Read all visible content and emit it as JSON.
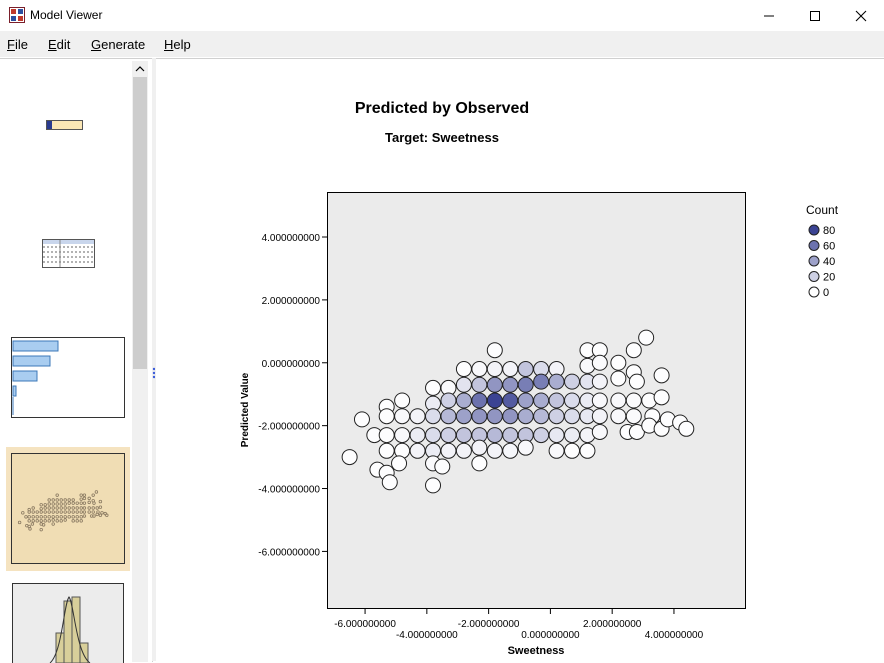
{
  "window": {
    "title": "Model Viewer",
    "minimize_glyph": "—",
    "maximize_glyph": "☐",
    "close_glyph": "✕"
  },
  "menu": [
    {
      "label": "File",
      "mnemonic": "F",
      "rest": "ile"
    },
    {
      "label": "Edit",
      "mnemonic": "E",
      "rest": "dit"
    },
    {
      "label": "Generate",
      "mnemonic": "G",
      "rest": "enerate"
    },
    {
      "label": "Help",
      "mnemonic": "H",
      "rest": "elp"
    }
  ],
  "thumbnails": [
    {
      "name": "model-summary-thumbnail",
      "selected": false
    },
    {
      "name": "table-thumbnail",
      "selected": false
    },
    {
      "name": "predictor-importance-thumbnail",
      "selected": false
    },
    {
      "name": "predicted-by-observed-thumbnail",
      "selected": true
    },
    {
      "name": "residuals-histogram-thumbnail",
      "selected": false
    }
  ],
  "colors": {
    "selected_bg": "#f5e3c0",
    "plot_bg": "#ebebeb",
    "dark_point": "#3b4393",
    "light_point": "#ffffff"
  },
  "chart_data": {
    "type": "scatter",
    "title": "Predicted by Observed",
    "subtitle": "Target: Sweetness",
    "xlabel": "Sweetness",
    "ylabel": "Predicted Value",
    "xlim": [
      -7.2,
      6.3
    ],
    "ylim": [
      -7.8,
      5.4
    ],
    "xticks": [
      -6,
      -4,
      -2,
      0,
      2,
      4
    ],
    "xtick_labels": [
      "-6.000000000",
      "-4.000000000",
      "-2.000000000",
      "0.000000000",
      "2.000000000",
      "4.000000000"
    ],
    "yticks": [
      4,
      2,
      0,
      -2,
      -4,
      -6
    ],
    "ytick_labels": [
      "4.000000000",
      "2.000000000",
      "0.000000000",
      "-2.000000000",
      "-4.000000000",
      "-6.000000000"
    ],
    "legend": {
      "title": "Count",
      "position": "top-right",
      "entries": [
        {
          "label": "80",
          "count": 80
        },
        {
          "label": "60",
          "count": 60
        },
        {
          "label": "40",
          "count": 40
        },
        {
          "label": "20",
          "count": 20
        },
        {
          "label": "0",
          "count": 0
        }
      ]
    },
    "points": [
      {
        "x": -6.5,
        "y": -3.0,
        "count": 1
      },
      {
        "x": -6.1,
        "y": -1.8,
        "count": 1
      },
      {
        "x": -5.7,
        "y": -2.3,
        "count": 1
      },
      {
        "x": -5.6,
        "y": -3.4,
        "count": 1
      },
      {
        "x": -5.3,
        "y": -1.4,
        "count": 1
      },
      {
        "x": -5.3,
        "y": -1.7,
        "count": 1
      },
      {
        "x": -5.3,
        "y": -2.3,
        "count": 1
      },
      {
        "x": -5.3,
        "y": -2.8,
        "count": 1
      },
      {
        "x": -5.3,
        "y": -3.5,
        "count": 1
      },
      {
        "x": -5.2,
        "y": -3.8,
        "count": 1
      },
      {
        "x": -4.8,
        "y": -1.2,
        "count": 1
      },
      {
        "x": -4.8,
        "y": -1.7,
        "count": 3
      },
      {
        "x": -4.8,
        "y": -2.3,
        "count": 3
      },
      {
        "x": -4.8,
        "y": -2.8,
        "count": 1
      },
      {
        "x": -4.9,
        "y": -3.2,
        "count": 1
      },
      {
        "x": -4.3,
        "y": -1.7,
        "count": 5
      },
      {
        "x": -4.3,
        "y": -2.3,
        "count": 8
      },
      {
        "x": -4.3,
        "y": -2.8,
        "count": 5
      },
      {
        "x": -3.8,
        "y": -0.8,
        "count": 1
      },
      {
        "x": -3.8,
        "y": -1.3,
        "count": 8
      },
      {
        "x": -3.8,
        "y": -1.7,
        "count": 15
      },
      {
        "x": -3.8,
        "y": -2.3,
        "count": 15
      },
      {
        "x": -3.8,
        "y": -2.8,
        "count": 8
      },
      {
        "x": -3.8,
        "y": -3.2,
        "count": 2
      },
      {
        "x": -3.8,
        "y": -3.9,
        "count": 1
      },
      {
        "x": -3.5,
        "y": -3.3,
        "count": 1
      },
      {
        "x": -3.3,
        "y": -0.8,
        "count": 2
      },
      {
        "x": -3.3,
        "y": -1.2,
        "count": 20
      },
      {
        "x": -3.3,
        "y": -1.7,
        "count": 30
      },
      {
        "x": -3.3,
        "y": -2.3,
        "count": 20
      },
      {
        "x": -3.3,
        "y": -2.8,
        "count": 5
      },
      {
        "x": -2.8,
        "y": -0.2,
        "count": 1
      },
      {
        "x": -2.8,
        "y": -0.7,
        "count": 12
      },
      {
        "x": -2.8,
        "y": -1.2,
        "count": 35
      },
      {
        "x": -2.8,
        "y": -1.7,
        "count": 40
      },
      {
        "x": -2.8,
        "y": -2.3,
        "count": 25
      },
      {
        "x": -2.8,
        "y": -2.8,
        "count": 5
      },
      {
        "x": -2.3,
        "y": -0.2,
        "count": 3
      },
      {
        "x": -2.3,
        "y": -0.7,
        "count": 25
      },
      {
        "x": -2.3,
        "y": -1.2,
        "count": 60
      },
      {
        "x": -2.3,
        "y": -1.7,
        "count": 45
      },
      {
        "x": -2.3,
        "y": -2.3,
        "count": 25
      },
      {
        "x": -2.3,
        "y": -2.7,
        "count": 5
      },
      {
        "x": -2.3,
        "y": -3.2,
        "count": 1
      },
      {
        "x": -1.8,
        "y": 0.4,
        "count": 1
      },
      {
        "x": -1.8,
        "y": -0.2,
        "count": 5
      },
      {
        "x": -1.8,
        "y": -0.7,
        "count": 45
      },
      {
        "x": -1.8,
        "y": -1.2,
        "count": 80
      },
      {
        "x": -1.8,
        "y": -1.7,
        "count": 45
      },
      {
        "x": -1.8,
        "y": -2.3,
        "count": 30
      },
      {
        "x": -1.8,
        "y": -2.8,
        "count": 5
      },
      {
        "x": -1.3,
        "y": -0.2,
        "count": 5
      },
      {
        "x": -1.3,
        "y": -0.7,
        "count": 45
      },
      {
        "x": -1.3,
        "y": -1.2,
        "count": 70
      },
      {
        "x": -1.3,
        "y": -1.7,
        "count": 45
      },
      {
        "x": -1.3,
        "y": -2.3,
        "count": 25
      },
      {
        "x": -1.3,
        "y": -2.8,
        "count": 4
      },
      {
        "x": -0.8,
        "y": -0.2,
        "count": 25
      },
      {
        "x": -0.8,
        "y": -0.7,
        "count": 55
      },
      {
        "x": -0.8,
        "y": -1.2,
        "count": 40
      },
      {
        "x": -0.8,
        "y": -1.7,
        "count": 35
      },
      {
        "x": -0.8,
        "y": -2.3,
        "count": 25
      },
      {
        "x": -0.8,
        "y": -2.7,
        "count": 3
      },
      {
        "x": -0.3,
        "y": -0.2,
        "count": 15
      },
      {
        "x": -0.3,
        "y": -0.6,
        "count": 55
      },
      {
        "x": -0.3,
        "y": -1.2,
        "count": 35
      },
      {
        "x": -0.3,
        "y": -1.7,
        "count": 30
      },
      {
        "x": -0.3,
        "y": -2.3,
        "count": 20
      },
      {
        "x": 0.2,
        "y": -0.2,
        "count": 5
      },
      {
        "x": 0.2,
        "y": -0.6,
        "count": 35
      },
      {
        "x": 0.2,
        "y": -1.2,
        "count": 25
      },
      {
        "x": 0.2,
        "y": -1.7,
        "count": 20
      },
      {
        "x": 0.2,
        "y": -2.3,
        "count": 10
      },
      {
        "x": 0.2,
        "y": -2.8,
        "count": 3
      },
      {
        "x": 0.7,
        "y": -0.6,
        "count": 20
      },
      {
        "x": 0.7,
        "y": -1.2,
        "count": 15
      },
      {
        "x": 0.7,
        "y": -1.7,
        "count": 15
      },
      {
        "x": 0.7,
        "y": -2.3,
        "count": 8
      },
      {
        "x": 0.7,
        "y": -2.8,
        "count": 1
      },
      {
        "x": 1.2,
        "y": 0.4,
        "count": 1
      },
      {
        "x": 1.2,
        "y": -0.1,
        "count": 3
      },
      {
        "x": 1.2,
        "y": -0.6,
        "count": 12
      },
      {
        "x": 1.2,
        "y": -1.2,
        "count": 8
      },
      {
        "x": 1.2,
        "y": -1.7,
        "count": 10
      },
      {
        "x": 1.2,
        "y": -2.3,
        "count": 5
      },
      {
        "x": 1.2,
        "y": -2.8,
        "count": 1
      },
      {
        "x": 1.6,
        "y": 0.4,
        "count": 1
      },
      {
        "x": 1.6,
        "y": 0.0,
        "count": 2
      },
      {
        "x": 1.6,
        "y": -0.6,
        "count": 5
      },
      {
        "x": 1.6,
        "y": -1.2,
        "count": 3
      },
      {
        "x": 1.6,
        "y": -1.7,
        "count": 5
      },
      {
        "x": 1.6,
        "y": -2.2,
        "count": 3
      },
      {
        "x": 2.2,
        "y": 0.0,
        "count": 1
      },
      {
        "x": 2.2,
        "y": -0.5,
        "count": 1
      },
      {
        "x": 2.2,
        "y": -1.2,
        "count": 3
      },
      {
        "x": 2.2,
        "y": -1.7,
        "count": 3
      },
      {
        "x": 2.7,
        "y": 0.4,
        "count": 1
      },
      {
        "x": 2.7,
        "y": -0.3,
        "count": 1
      },
      {
        "x": 2.7,
        "y": -1.2,
        "count": 2
      },
      {
        "x": 2.7,
        "y": -1.7,
        "count": 2
      },
      {
        "x": 2.5,
        "y": -2.2,
        "count": 1
      },
      {
        "x": 2.8,
        "y": -2.2,
        "count": 1
      },
      {
        "x": 2.8,
        "y": -0.6,
        "count": 1
      },
      {
        "x": 3.1,
        "y": 0.8,
        "count": 1
      },
      {
        "x": 3.2,
        "y": -1.2,
        "count": 1
      },
      {
        "x": 3.3,
        "y": -1.7,
        "count": 1
      },
      {
        "x": 3.2,
        "y": -2.0,
        "count": 1
      },
      {
        "x": 3.6,
        "y": -0.4,
        "count": 1
      },
      {
        "x": 3.6,
        "y": -1.1,
        "count": 1
      },
      {
        "x": 3.6,
        "y": -2.1,
        "count": 1
      },
      {
        "x": 3.8,
        "y": -1.8,
        "count": 1
      },
      {
        "x": 4.2,
        "y": -1.9,
        "count": 1
      },
      {
        "x": 4.4,
        "y": -2.1,
        "count": 1
      }
    ]
  }
}
